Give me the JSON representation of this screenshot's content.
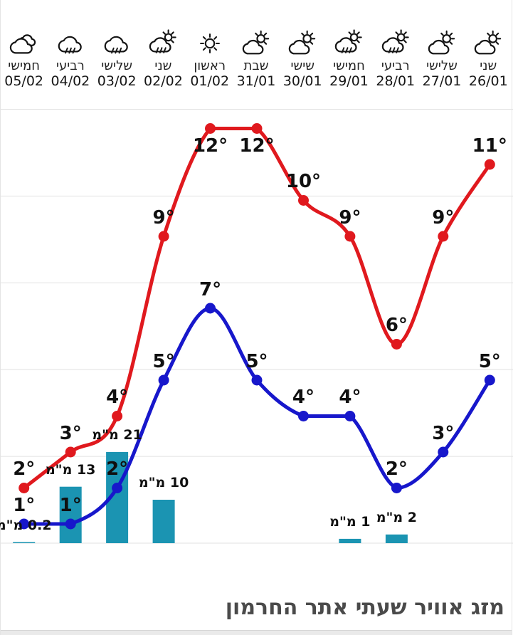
{
  "page_title": "מזג אוויר שעתי אתר החרמון",
  "header": {
    "days": [
      {
        "name": "חמישי",
        "date": "05/02",
        "icon": "cloudy"
      },
      {
        "name": "רביעי",
        "date": "04/02",
        "icon": "rain"
      },
      {
        "name": "שלישי",
        "date": "03/02",
        "icon": "rain"
      },
      {
        "name": "שני",
        "date": "02/02",
        "icon": "rain-sun"
      },
      {
        "name": "ראשון",
        "date": "01/02",
        "icon": "sun"
      },
      {
        "name": "שבת",
        "date": "31/01",
        "icon": "partly-cloudy"
      },
      {
        "name": "שישי",
        "date": "30/01",
        "icon": "partly-cloudy"
      },
      {
        "name": "חמישי",
        "date": "29/01",
        "icon": "rain-sun"
      },
      {
        "name": "רביעי",
        "date": "28/01",
        "icon": "rain-sun"
      },
      {
        "name": "שלישי",
        "date": "27/01",
        "icon": "partly-cloudy"
      },
      {
        "name": "שני",
        "date": "26/01",
        "icon": "partly-cloudy"
      }
    ]
  },
  "chart_data": {
    "type": "line",
    "direction": "rtl",
    "note": "arrays are in visual left-to-right order; dates run right-to-left",
    "categories": [
      "05/02",
      "04/02",
      "03/02",
      "02/02",
      "01/02",
      "31/01",
      "30/01",
      "29/01",
      "28/01",
      "27/01",
      "26/01"
    ],
    "series": [
      {
        "name": "max-temp",
        "type": "line",
        "color": "#e0191e",
        "unit": "°",
        "values": [
          2,
          3,
          4,
          9,
          12,
          12,
          10,
          9,
          6,
          9,
          11
        ],
        "labels": [
          "2°",
          "3°",
          "4°",
          "9°",
          "12°",
          "12°",
          "10°",
          "9°",
          "6°",
          "9°",
          "11°"
        ]
      },
      {
        "name": "min-temp",
        "type": "line",
        "color": "#1717cb",
        "unit": "°",
        "values": [
          1,
          1,
          2,
          5,
          7,
          5,
          4,
          4,
          2,
          3,
          5
        ],
        "labels": [
          "1°",
          "1°",
          "2°",
          "5°",
          "7°",
          "5°",
          "4°",
          "4°",
          "2°",
          "3°",
          "5°"
        ]
      },
      {
        "name": "precipitation",
        "type": "bar",
        "color": "#1b94b2",
        "unit": "מ\"מ",
        "values": [
          0.2,
          13,
          21,
          10,
          null,
          null,
          null,
          1,
          2,
          null,
          null
        ],
        "labels": [
          "0.2 מ\"מ",
          "13 מ\"מ",
          "21 מ\"מ",
          "10 מ\"מ",
          null,
          null,
          null,
          "1 מ\"מ",
          "2 מ\"מ",
          null,
          null
        ]
      }
    ],
    "ylim_temp": [
      0,
      13
    ],
    "grid": true,
    "legend": false
  },
  "colors": {
    "max_line": "#e0191e",
    "min_line": "#1717cb",
    "precip_bar": "#1b94b2",
    "grid": "#e2e2e2",
    "label_text": "#101010",
    "title_text": "#4a4a4a"
  }
}
